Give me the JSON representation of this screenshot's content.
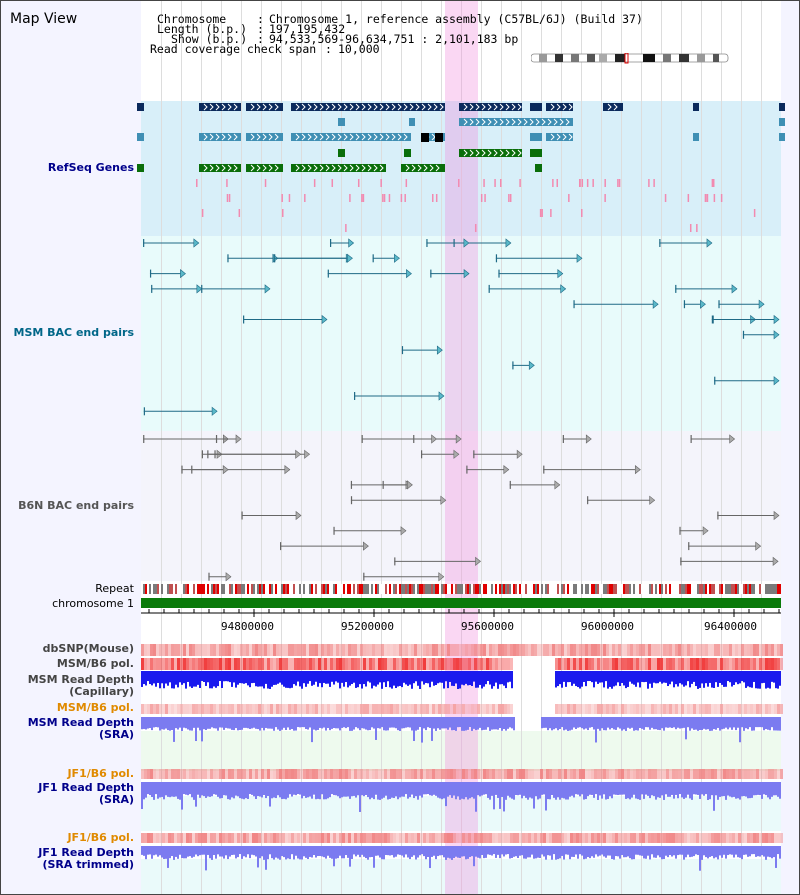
{
  "view": {
    "title": "Map View"
  },
  "header": {
    "chromosome_label": "Chromosome",
    "chromosome_value": "Chromosome 1, reference assembly (C57BL/6J) (Build 37)",
    "length_label": "Length (b.p.)",
    "length_value": "197,195,432",
    "show_label": "Show (b.p.)",
    "show_value": "94,533,569-96,634,751 : 2,101,183 bp",
    "coverage_label": "Read coverage check span",
    "coverage_value": "10,000"
  },
  "tracks": {
    "refseq": "RefSeq Genes",
    "msm_bac": "MSM BAC end pairs",
    "b6n_bac": "B6N BAC end pairs",
    "repeat": "Repeat",
    "chromosome": "chromosome 1",
    "dbsnp": "dbSNP(Mouse)",
    "msm_b6_pol_1": "MSM/B6 pol.",
    "msm_depth_cap": "MSM Read Depth\n(Capillary)",
    "msm_b6_pol_2": "MSM/B6 pol.",
    "msm_depth_sra": "MSM Read Depth\n(SRA)",
    "jf1_b6_pol_1": "JF1/B6 pol.",
    "jf1_depth_sra": "JF1 Read Depth\n(SRA)",
    "jf1_b6_pol_2": "JF1/B6 pol.",
    "jf1_depth_trim": "JF1 Read Depth\n(SRA trimmed)"
  },
  "axis": {
    "ticks": [
      "94800000",
      "95200000",
      "95600000",
      "96000000",
      "96400000"
    ]
  },
  "colors": {
    "refseq_bg": "#d8eff9",
    "msm_bg": "#e8fbfb",
    "b6n_bg": "#f4f4fb",
    "highlight": "#f3c6ee",
    "gene_dark": "#0b2a5c",
    "gene_mid": "#3f8fb4",
    "gene_green": "#0a6e0a",
    "msm_line": "#1f6a86",
    "b6n_line": "#666666",
    "chromosome": "#0a7a0a",
    "snp": "#f06060",
    "depth_blue": "#1a1aee",
    "depth_light": "#7b7bf0",
    "label_blue": "#00008b",
    "label_orange": "#e08a00",
    "label_teal": "#006688"
  }
}
